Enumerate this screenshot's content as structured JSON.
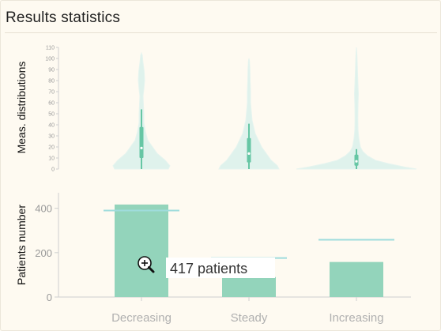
{
  "panel": {
    "title": "Results statistics"
  },
  "colors": {
    "bar": "#93d4bb",
    "violin_fill": "#dff2ec",
    "violin_stroke": "#e6f4ef",
    "box": "#66c6a4",
    "expected_line": "#9fdcdd",
    "axis": "#cfcfcf",
    "tick_text": "#9a9a9a"
  },
  "tooltip": {
    "icon": "zoom-in-icon",
    "text": "417 patients"
  },
  "chart_data": [
    {
      "type": "violin",
      "ylabel": "Meas. distributions",
      "ylim": [
        0,
        110
      ],
      "yticks": [
        0,
        10,
        20,
        30,
        40,
        50,
        60,
        70,
        80,
        90,
        100,
        110
      ],
      "categories": [
        "Decreasing",
        "Steady",
        "Increasing"
      ],
      "series": [
        {
          "q1": 10,
          "median": 19,
          "q3": 38,
          "whisker_low": 0,
          "whisker_high": 54,
          "max": 105
        },
        {
          "q1": 6,
          "median": 14,
          "q3": 28,
          "whisker_low": 0,
          "whisker_high": 41,
          "max": 100
        },
        {
          "q1": 3,
          "median": 7,
          "q3": 13,
          "whisker_low": 0,
          "whisker_high": 18,
          "max": 110
        }
      ]
    },
    {
      "type": "bar",
      "ylabel": "Patients number",
      "ylim": [
        0,
        470
      ],
      "yticks": [
        0,
        200,
        400
      ],
      "categories": [
        "Decreasing",
        "Steady",
        "Increasing"
      ],
      "values": [
        417,
        90,
        158
      ],
      "expected": [
        390,
        176,
        258
      ]
    }
  ]
}
